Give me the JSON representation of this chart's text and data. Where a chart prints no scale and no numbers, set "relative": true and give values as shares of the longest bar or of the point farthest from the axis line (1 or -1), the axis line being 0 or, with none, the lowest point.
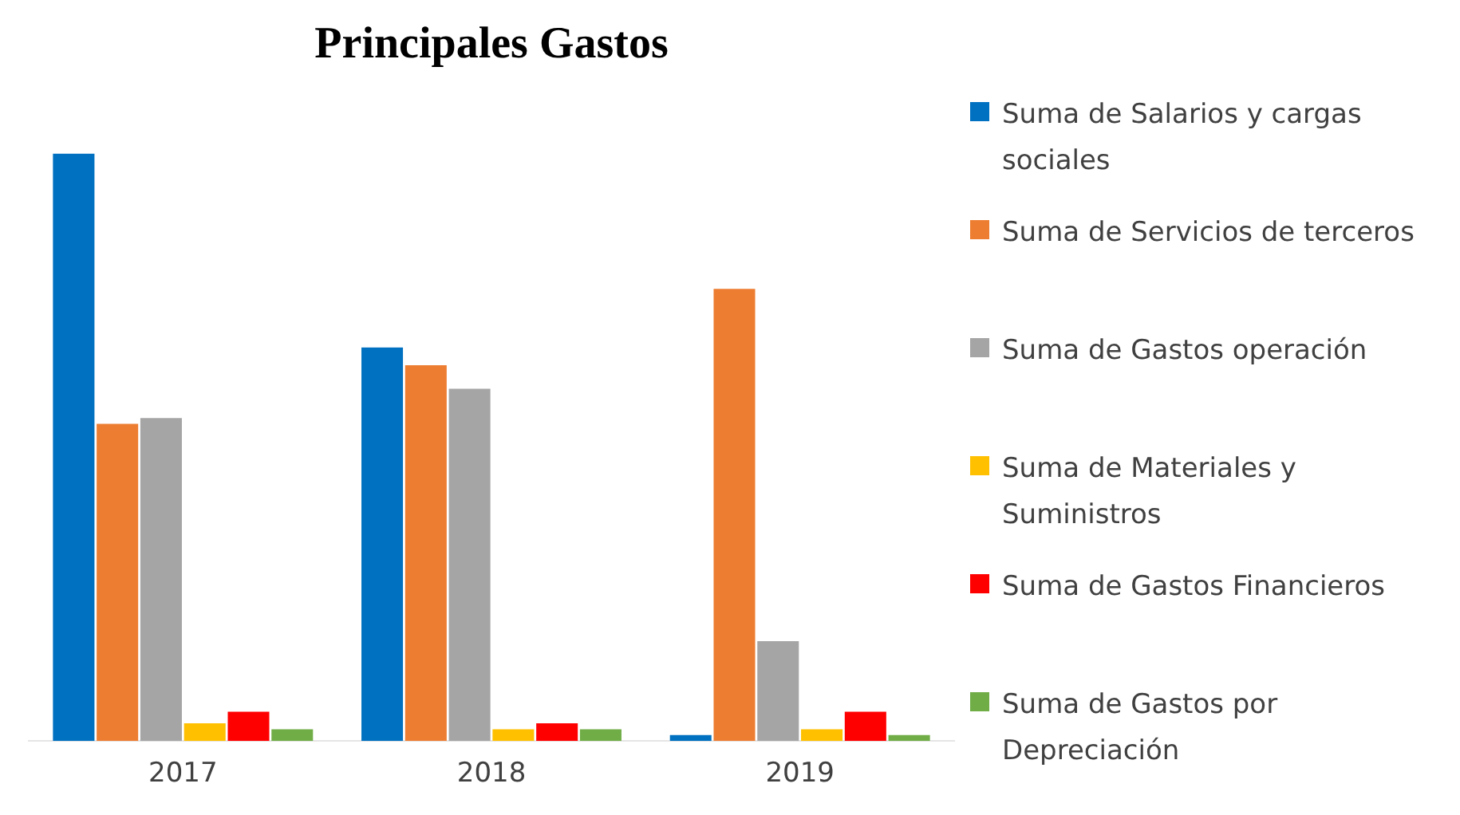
{
  "chart_data": {
    "type": "bar",
    "title": "Principales Gastos",
    "categories": [
      "2017",
      "2018",
      "2019"
    ],
    "relative": true,
    "legend": "right",
    "series": [
      {
        "name": "Suma de Salarios y cargas sociales",
        "color": "#0070c0",
        "values": [
          1,
          0.67,
          0.01
        ]
      },
      {
        "name": "Suma de Servicios de terceros",
        "color": "#ed7d31",
        "values": [
          0.54,
          0.64,
          0.77
        ]
      },
      {
        "name": "Suma de Gastos operación",
        "color": "#a5a5a5",
        "values": [
          0.55,
          0.6,
          0.17
        ]
      },
      {
        "name": "Suma de Materiales y Suministros",
        "color": "#ffc000",
        "values": [
          0.03,
          0.02,
          0.02
        ]
      },
      {
        "name": "Suma de Gastos Financieros",
        "color": "#ff0000",
        "values": [
          0.05,
          0.03,
          0.05
        ]
      },
      {
        "name": "Suma de Gastos por Depreciación",
        "color": "#70ad47",
        "values": [
          0.02,
          0.02,
          0.01
        ]
      }
    ]
  }
}
